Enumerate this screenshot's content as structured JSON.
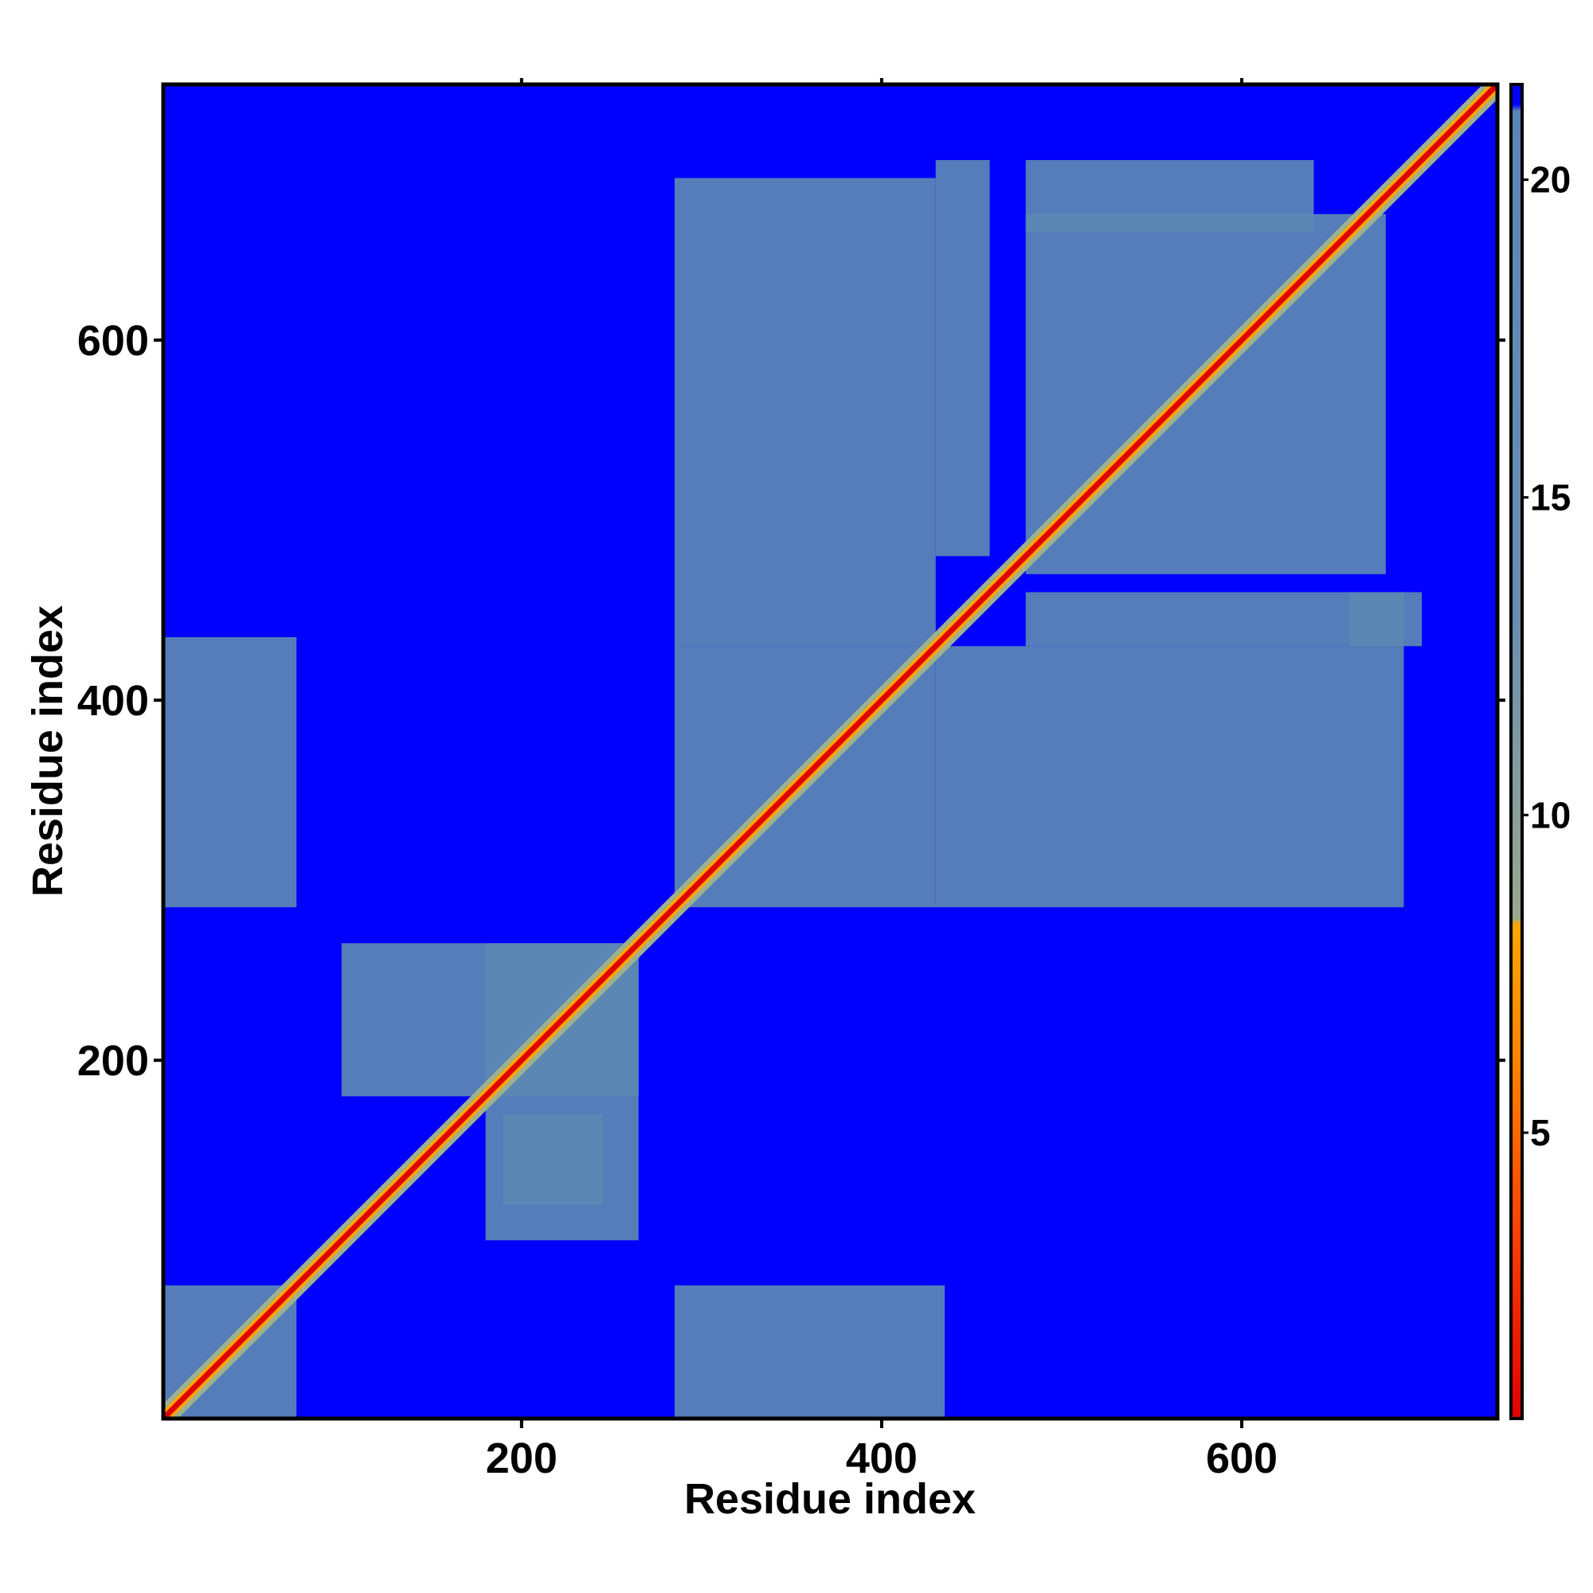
{
  "chart_data": {
    "type": "heatmap",
    "title": "",
    "xlabel": "Residue index",
    "ylabel": "Residue index",
    "xlim": [
      1,
      742
    ],
    "ylim": [
      1,
      742
    ],
    "x_ticks": [
      "200",
      "400",
      "600"
    ],
    "y_ticks": [
      "200",
      "400",
      "600"
    ],
    "colorbar": {
      "range": [
        0.5,
        21.5
      ],
      "ticks": [
        "5",
        "10",
        "15",
        "20"
      ],
      "colors": {
        "very_close": "#e00000",
        "close": "#ff6a00",
        "mid": "#ffa500",
        "near": "#9fb08a",
        "far": "#5c88b4",
        "background": "#0000ff"
      }
    },
    "description_of_values": "Symmetric residue-residue distance map; diagonal values near 0, background saturated at the colorbar maximum.",
    "diagonal_value": 2,
    "background_value": 21,
    "blocks": [
      {
        "x": [
          1,
          75
        ],
        "y": [
          1,
          75
        ],
        "value": 14
      },
      {
        "x": [
          1,
          75
        ],
        "y": [
          285,
          435
        ],
        "value": 15
      },
      {
        "x": [
          285,
          435
        ],
        "y": [
          1,
          75
        ],
        "value": 15
      },
      {
        "x": [
          100,
          265
        ],
        "y": [
          180,
          265
        ],
        "value": 15
      },
      {
        "x": [
          180,
          265
        ],
        "y": [
          100,
          265
        ],
        "value": 15
      },
      {
        "x": [
          190,
          245
        ],
        "y": [
          120,
          170
        ],
        "value": 15
      },
      {
        "x": [
          285,
          430
        ],
        "y": [
          285,
          430
        ],
        "value": 14
      },
      {
        "x": [
          480,
          680
        ],
        "y": [
          470,
          670
        ],
        "value": 14
      },
      {
        "x": [
          285,
          430
        ],
        "y": [
          430,
          690
        ],
        "value": 16
      },
      {
        "x": [
          430,
          690
        ],
        "y": [
          285,
          430
        ],
        "value": 16
      },
      {
        "x": [
          430,
          460
        ],
        "y": [
          480,
          700
        ],
        "value": 15
      },
      {
        "x": [
          480,
          700
        ],
        "y": [
          430,
          460
        ],
        "value": 15
      },
      {
        "x": [
          480,
          640
        ],
        "y": [
          660,
          700
        ],
        "value": 15
      },
      {
        "x": [
          660,
          690
        ],
        "y": [
          430,
          460
        ],
        "value": 15
      }
    ]
  }
}
